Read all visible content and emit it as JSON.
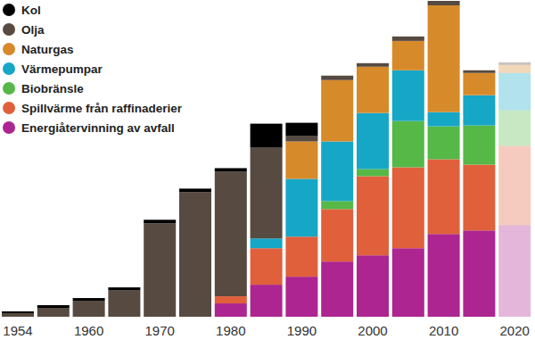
{
  "chart_data": {
    "type": "bar",
    "stacked": true,
    "legend": "top-left",
    "tick_labels": "x",
    "categories": [
      "1954",
      null,
      "1960",
      null,
      "1970",
      null,
      "1980",
      null,
      "1990",
      null,
      "2000",
      null,
      "2010",
      null,
      "2020"
    ],
    "ylim": [
      0,
      355
    ],
    "series": [
      {
        "name": "Kol",
        "color": "#000000",
        "values": [
          2,
          3,
          3,
          3,
          4,
          4,
          4,
          27,
          15,
          0,
          0,
          0,
          0,
          0,
          0
        ]
      },
      {
        "name": "Olja",
        "color": "#574a40",
        "values": [
          4,
          10,
          18,
          30,
          105,
          140,
          140,
          102,
          6,
          5,
          4,
          5,
          5,
          3,
          3
        ]
      },
      {
        "name": "Naturgas",
        "color": "#d68a2a",
        "values": [
          0,
          0,
          0,
          0,
          0,
          0,
          0,
          0,
          42,
          69,
          52,
          33,
          120,
          25,
          9
        ]
      },
      {
        "name": "Värmepumpar",
        "color": "#16a6c6",
        "values": [
          0,
          0,
          0,
          0,
          0,
          0,
          0,
          11,
          65,
          67,
          63,
          57,
          16,
          34,
          42
        ]
      },
      {
        "name": "Biobränsle",
        "color": "#55b847",
        "values": [
          0,
          0,
          0,
          0,
          0,
          0,
          0,
          0,
          0,
          9,
          8,
          52,
          37,
          44,
          40
        ]
      },
      {
        "name": "Spillvärme från raffinaderier",
        "color": "#e0603c",
        "values": [
          0,
          0,
          0,
          0,
          0,
          0,
          8,
          41,
          45,
          59,
          89,
          91,
          84,
          74,
          89
        ]
      },
      {
        "name": "Energiåtervinning av avfall",
        "color": "#ac2590",
        "values": [
          0,
          0,
          0,
          0,
          0,
          0,
          15,
          36,
          45,
          62,
          69,
          77,
          93,
          97,
          103
        ]
      }
    ]
  }
}
